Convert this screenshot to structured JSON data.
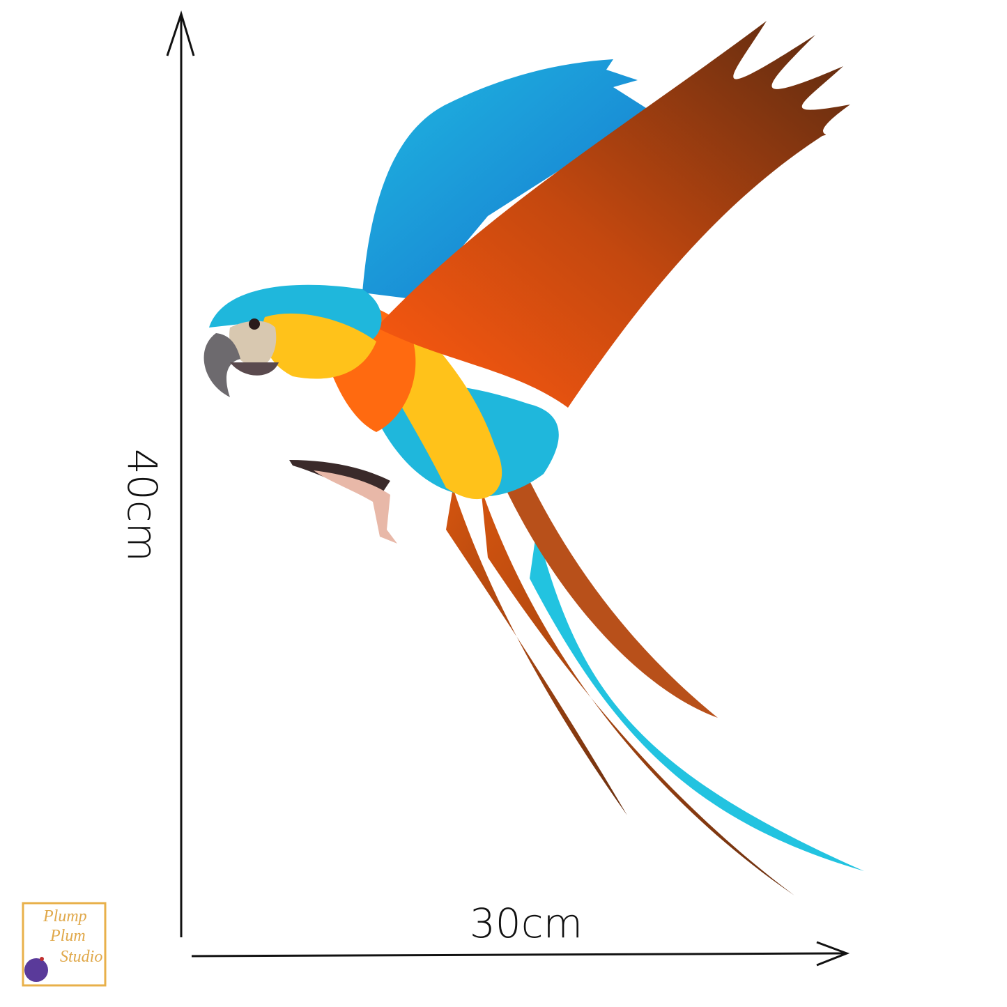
{
  "dimensions": {
    "height": "40cm",
    "width": "30cm"
  },
  "logo": {
    "lines": [
      "Plump",
      "Plum",
      "Studio"
    ]
  }
}
